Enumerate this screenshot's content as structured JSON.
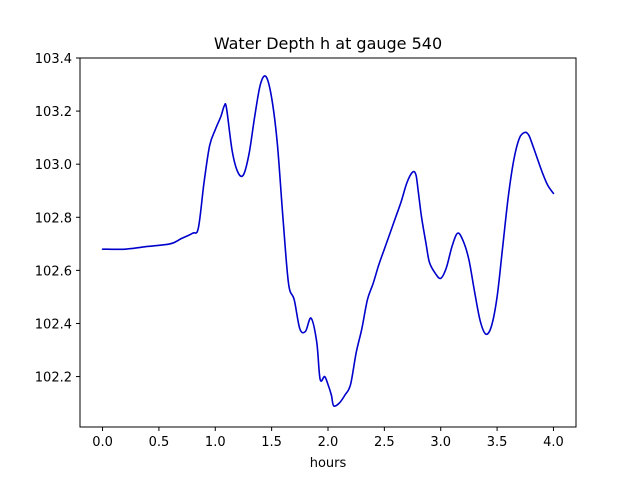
{
  "chart_data": {
    "type": "line",
    "title": "Water Depth h at gauge 540",
    "xlabel": "hours",
    "ylabel": "",
    "xlim": [
      -0.2,
      4.2
    ],
    "ylim": [
      102.01,
      103.4
    ],
    "xticks": [
      0.0,
      0.5,
      1.0,
      1.5,
      2.0,
      2.5,
      3.0,
      3.5,
      4.0
    ],
    "xtick_labels": [
      "0.0",
      "0.5",
      "1.0",
      "1.5",
      "2.0",
      "2.5",
      "3.0",
      "3.5",
      "4.0"
    ],
    "yticks": [
      102.2,
      102.4,
      102.6,
      102.8,
      103.0,
      103.2,
      103.4
    ],
    "ytick_labels": [
      "102.2",
      "102.4",
      "102.6",
      "102.8",
      "103.0",
      "103.2",
      "103.4"
    ],
    "grid": false,
    "series": [
      {
        "color": "#0000cc",
        "x": [
          0.0,
          0.2,
          0.4,
          0.6,
          0.7,
          0.8,
          0.85,
          0.9,
          0.95,
          1.0,
          1.05,
          1.08,
          1.1,
          1.15,
          1.2,
          1.25,
          1.3,
          1.35,
          1.4,
          1.45,
          1.5,
          1.55,
          1.6,
          1.65,
          1.7,
          1.75,
          1.8,
          1.85,
          1.9,
          1.93,
          1.97,
          2.0,
          2.03,
          2.05,
          2.1,
          2.15,
          2.2,
          2.25,
          2.3,
          2.35,
          2.4,
          2.45,
          2.5,
          2.55,
          2.6,
          2.65,
          2.7,
          2.75,
          2.78,
          2.8,
          2.83,
          2.87,
          2.9,
          2.95,
          3.0,
          3.05,
          3.1,
          3.15,
          3.2,
          3.25,
          3.3,
          3.35,
          3.4,
          3.45,
          3.5,
          3.55,
          3.6,
          3.65,
          3.7,
          3.75,
          3.78,
          3.8,
          3.85,
          3.9,
          3.95,
          4.0
        ],
        "y": [
          102.68,
          102.68,
          102.69,
          102.7,
          102.72,
          102.74,
          102.76,
          102.93,
          103.07,
          103.13,
          103.18,
          103.22,
          103.21,
          103.05,
          102.97,
          102.96,
          103.04,
          103.18,
          103.3,
          103.33,
          103.25,
          103.08,
          102.8,
          102.55,
          102.49,
          102.38,
          102.37,
          102.42,
          102.33,
          102.19,
          102.2,
          102.17,
          102.13,
          102.09,
          102.1,
          102.13,
          102.17,
          102.29,
          102.38,
          102.49,
          102.55,
          102.62,
          102.68,
          102.74,
          102.8,
          102.86,
          102.93,
          102.97,
          102.96,
          102.9,
          102.8,
          102.7,
          102.63,
          102.59,
          102.57,
          102.61,
          102.69,
          102.74,
          102.71,
          102.64,
          102.52,
          102.41,
          102.36,
          102.39,
          102.5,
          102.69,
          102.88,
          103.02,
          103.1,
          103.12,
          103.11,
          103.09,
          103.03,
          102.97,
          102.92,
          102.89
        ]
      }
    ]
  }
}
